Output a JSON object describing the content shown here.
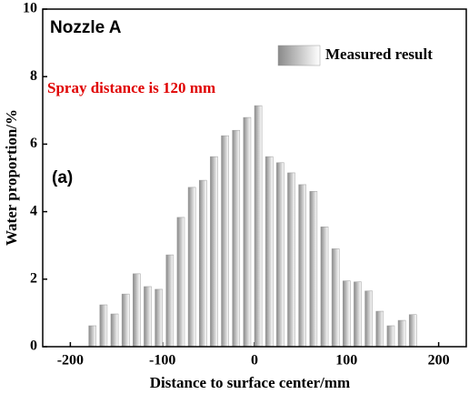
{
  "chart_data": {
    "type": "bar",
    "title": "Nozzle A",
    "annotations": [
      "Spray distance is 120 mm",
      "(a)"
    ],
    "x_label": "Distance to surface center/mm",
    "y_label": "Water proportion/%",
    "x": [
      -176,
      -164,
      -152,
      -140,
      -128,
      -116,
      -104,
      -92,
      -80,
      -68,
      -56,
      -44,
      -32,
      -20,
      -8,
      4,
      16,
      28,
      40,
      52,
      64,
      76,
      88,
      100,
      112,
      124,
      136,
      148,
      160,
      172
    ],
    "series": [
      {
        "name": "Measured result",
        "color": "#9a9a9a",
        "values": [
          0.62,
          1.24,
          0.97,
          1.56,
          2.16,
          1.78,
          1.7,
          2.72,
          3.83,
          4.72,
          4.93,
          5.63,
          6.25,
          6.41,
          6.79,
          7.14,
          5.63,
          5.45,
          5.15,
          4.8,
          4.6,
          3.55,
          2.9,
          1.95,
          1.92,
          1.65,
          1.05,
          0.62,
          0.78,
          0.95
        ]
      }
    ],
    "xlim": [
      -230,
      230
    ],
    "xticks": [
      -200,
      -100,
      0,
      100,
      200
    ],
    "ylim": [
      0,
      10
    ],
    "yticks": [
      0,
      2,
      4,
      6,
      8,
      10
    ],
    "legend": "upper right",
    "grid": false
  }
}
